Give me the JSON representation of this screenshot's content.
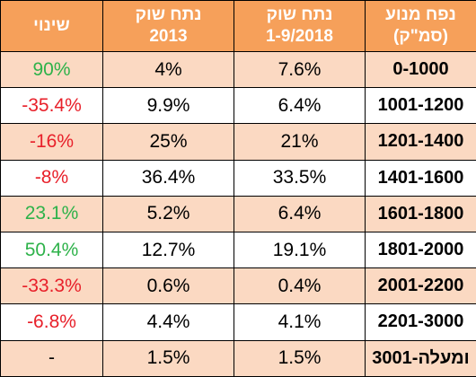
{
  "header": {
    "change": "שינוי",
    "share_2013_line1": "נתח שוק",
    "share_2013_line2": "2013",
    "share_2018_line1": "נתח שוק",
    "share_2018_line2": "1-9/2018",
    "engine_line1": "נפח מנוע",
    "engine_line2": "(סמ\"ק)"
  },
  "rows": [
    {
      "range": "0-1000",
      "share_2018": "7.6%",
      "share_2013": "4%",
      "change": "90%"
    },
    {
      "range": "1001-1200",
      "share_2018": "6.4%",
      "share_2013": "9.9%",
      "change": "-35.4%"
    },
    {
      "range": "1201-1400",
      "share_2018": "21%",
      "share_2013": "25%",
      "change": "-16%"
    },
    {
      "range": "1401-1600",
      "share_2018": "33.5%",
      "share_2013": "36.4%",
      "change": "-8%"
    },
    {
      "range": "1601-1800",
      "share_2018": "6.4%",
      "share_2013": "5.2%",
      "change": "23.1%"
    },
    {
      "range": "1801-2000",
      "share_2018": "19.1%",
      "share_2013": "12.7%",
      "change": "50.4%"
    },
    {
      "range": "2001-2200",
      "share_2018": "0.4%",
      "share_2013": "0.6%",
      "change": "-33.3%"
    },
    {
      "range": "2201-3000",
      "share_2018": "4.1%",
      "share_2013": "4.4%",
      "change": "-6.8%"
    },
    {
      "range": "3001-ומעלה",
      "share_2018": "1.5%",
      "share_2013": "1.5%",
      "change": "-"
    }
  ],
  "colors": {
    "header_bg": "#f6a05a",
    "header_text": "#ffffff",
    "shaded_row_bg": "#fbd9c2",
    "plain_row_bg": "#ffffff",
    "positive_change": "#2eb24a",
    "negative_change": "#e8202a",
    "border": "#000000"
  }
}
